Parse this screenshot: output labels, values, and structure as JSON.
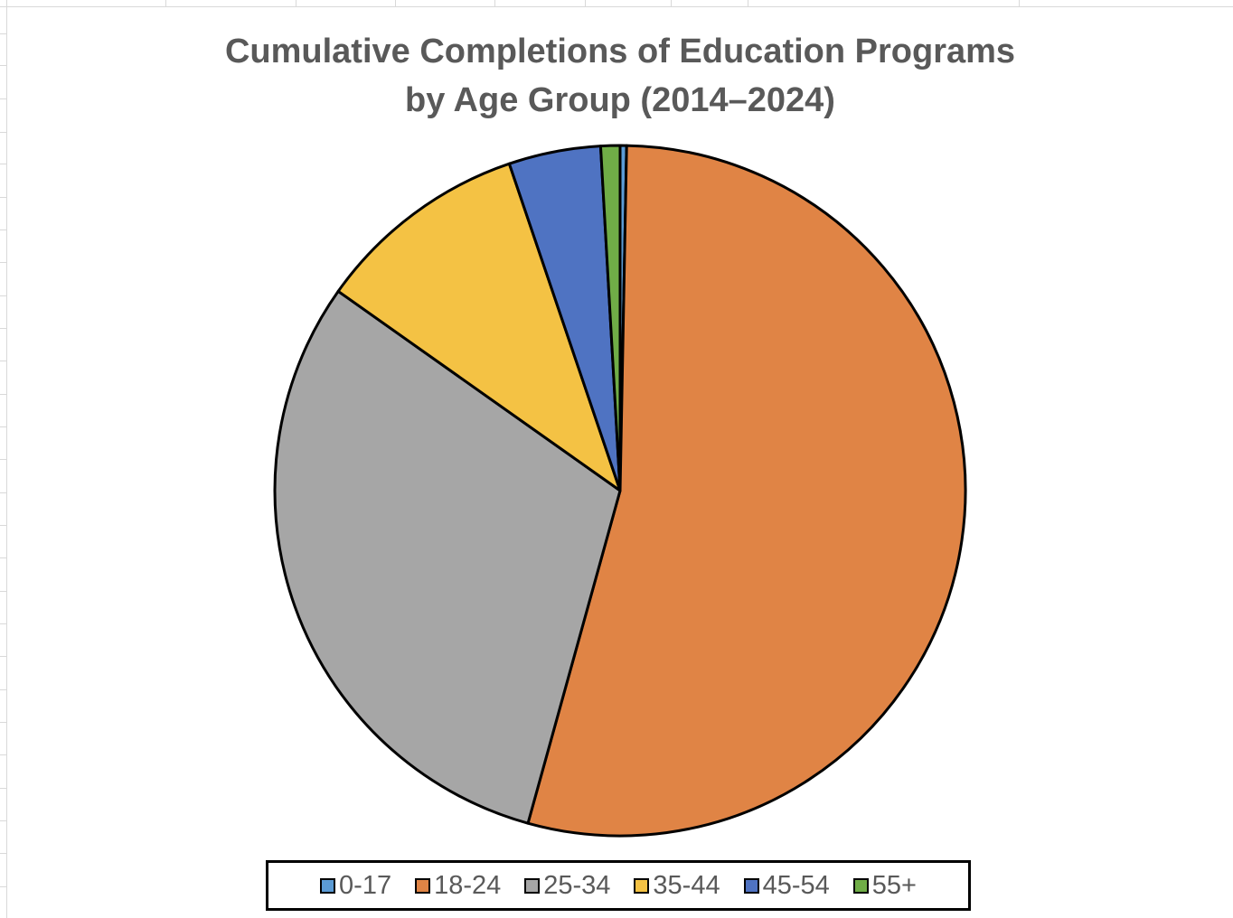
{
  "chart_data": {
    "type": "pie",
    "title_lines": [
      "Cumulative Completions of Education Programs",
      "by Age Group (2014–2024)"
    ],
    "categories": [
      "0-17",
      "18-24",
      "25-34",
      "35-44",
      "45-54",
      "55+"
    ],
    "values": [
      0.3,
      54.0,
      30.5,
      10.0,
      4.3,
      0.9
    ],
    "colors": [
      "#5B9BD5",
      "#E08445",
      "#A6A6A6",
      "#F4C244",
      "#4F73C2",
      "#70AD47"
    ],
    "legend_position": "bottom",
    "start_angle_deg": 0,
    "direction": "clockwise"
  }
}
